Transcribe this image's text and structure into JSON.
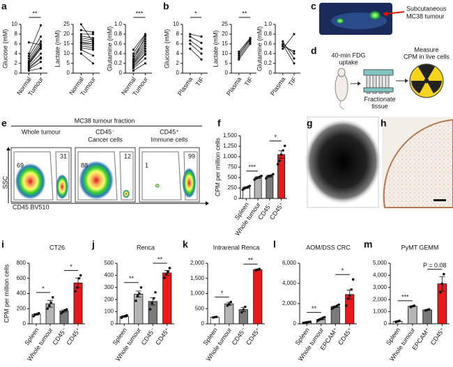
{
  "chart_data": [
    {
      "type": "paired",
      "ylabel": "Glucose (mM)",
      "categories": [
        "Normal",
        "Tumour"
      ],
      "color": "#111111",
      "series": [
        {
          "values": [
            0.5,
            1
          ]
        },
        {
          "values": [
            0.8,
            2.3
          ]
        },
        {
          "values": [
            1,
            3
          ]
        },
        {
          "values": [
            1.2,
            3.2
          ]
        },
        {
          "values": [
            1.5,
            4
          ]
        },
        {
          "values": [
            1.8,
            5
          ]
        },
        {
          "values": [
            2,
            5.3
          ]
        },
        {
          "values": [
            2.2,
            5.5
          ]
        },
        {
          "values": [
            2.5,
            6
          ]
        },
        {
          "values": [
            3,
            6.5
          ]
        },
        {
          "values": [
            3.5,
            7.5
          ]
        },
        {
          "values": [
            4,
            9.8
          ]
        },
        {
          "values": [
            6.3,
            5.8
          ]
        }
      ],
      "ylim": [
        0,
        10
      ],
      "yticks": [
        0,
        2,
        4,
        6,
        8,
        10
      ],
      "significance": [
        "**"
      ]
    },
    {
      "type": "paired",
      "ylabel": "Lactate (mM)",
      "categories": [
        "Normal",
        "Tumour"
      ],
      "color": "#111111",
      "series": [
        {
          "values": [
            10,
            5
          ]
        },
        {
          "values": [
            12,
            9
          ]
        },
        {
          "values": [
            13,
            12
          ]
        },
        {
          "values": [
            14,
            13
          ]
        },
        {
          "values": [
            15,
            14
          ]
        },
        {
          "values": [
            15.5,
            15
          ]
        },
        {
          "values": [
            16,
            15
          ]
        },
        {
          "values": [
            17,
            16
          ]
        },
        {
          "values": [
            18,
            17
          ]
        },
        {
          "values": [
            19,
            18
          ]
        },
        {
          "values": [
            20,
            20
          ]
        },
        {
          "values": [
            22,
            21
          ]
        },
        {
          "values": [
            25,
            16
          ]
        }
      ],
      "ylim": [
        0,
        25
      ],
      "yticks": [
        0,
        5,
        10,
        15,
        20,
        25
      ],
      "significance": []
    },
    {
      "type": "paired",
      "ylabel": "Glutamine (mM)",
      "categories": [
        "Normal",
        "Tumour"
      ],
      "color": "#111111",
      "series": [
        {
          "values": [
            0.05,
            0.2
          ]
        },
        {
          "values": [
            0.1,
            0.3
          ]
        },
        {
          "values": [
            0.12,
            0.38
          ]
        },
        {
          "values": [
            0.15,
            0.4
          ]
        },
        {
          "values": [
            0.18,
            0.45
          ]
        },
        {
          "values": [
            0.2,
            0.5
          ]
        },
        {
          "values": [
            0.22,
            0.55
          ]
        },
        {
          "values": [
            0.25,
            0.6
          ]
        },
        {
          "values": [
            0.3,
            0.65
          ]
        },
        {
          "values": [
            0.35,
            0.7
          ]
        },
        {
          "values": [
            0.4,
            0.78
          ]
        },
        {
          "values": [
            0.48,
            0.8
          ]
        },
        {
          "values": [
            0.28,
            0.75
          ]
        }
      ],
      "ylim": [
        0,
        1
      ],
      "yticks": [
        0,
        0.2,
        0.4,
        0.6,
        0.8,
        {
          "value": 1,
          "label": "1.0"
        }
      ],
      "significance": [
        "***"
      ]
    },
    {
      "type": "paired",
      "ylabel": "Glucose (mM)",
      "categories": [
        "Plasma",
        "TIF"
      ],
      "color": "#111111",
      "series": [
        {
          "values": [
            8,
            7.5
          ]
        },
        {
          "values": [
            7.5,
            6.2
          ]
        },
        {
          "values": [
            6.7,
            5
          ]
        },
        {
          "values": [
            6,
            4
          ]
        },
        {
          "values": [
            5,
            2.8
          ]
        }
      ],
      "ylim": [
        0,
        10
      ],
      "yticks": [
        0,
        2,
        4,
        6,
        8,
        10
      ],
      "significance": [
        "*"
      ]
    },
    {
      "type": "paired",
      "ylabel": "Lactate (mM)",
      "categories": [
        "Plasma",
        "TIF"
      ],
      "color": "#111111",
      "series": [
        {
          "values": [
            7,
            15
          ]
        },
        {
          "values": [
            8,
            16
          ]
        },
        {
          "values": [
            9,
            17
          ]
        },
        {
          "values": [
            10,
            17.5
          ]
        },
        {
          "values": [
            11,
            18
          ]
        }
      ],
      "ylim": [
        0,
        25
      ],
      "yticks": [
        0,
        5,
        10,
        15,
        20,
        25
      ],
      "significance": [
        "**"
      ]
    },
    {
      "type": "paired",
      "ylabel": "Glutamine (mM)",
      "categories": [
        "Plasma",
        "TIF"
      ],
      "color": "#111111",
      "series": [
        {
          "values": [
            0.5,
            0.8
          ]
        },
        {
          "values": [
            0.55,
            0.45
          ]
        },
        {
          "values": [
            0.6,
            0.4
          ]
        },
        {
          "values": [
            0.65,
            0.3
          ]
        },
        {
          "values": [
            0.58,
            0.2
          ]
        }
      ],
      "ylim": [
        0,
        1
      ],
      "yticks": [
        0,
        0.2,
        0.4,
        0.6,
        0.8,
        {
          "value": 1,
          "label": "1.0"
        }
      ],
      "significance": []
    },
    {
      "type": "bar",
      "ylabel": "CPM per million cells",
      "categories": [
        "Spleen",
        "Whole tumour",
        "CD45⁻",
        "CD45⁺"
      ],
      "colors": [
        "#ffffff",
        "#b5b5b5",
        "#7a7a7a",
        "#e8191a"
      ],
      "values": [
        260,
        500,
        535,
        1050
      ],
      "errors": [
        20,
        20,
        25,
        90
      ],
      "points": [
        [
          210,
          240,
          260,
          280,
          300
        ],
        [
          450,
          480,
          500,
          520,
          540
        ],
        [
          480,
          520,
          540,
          550,
          580
        ],
        [
          820,
          900,
          1050,
          1150,
          1260
        ]
      ],
      "ylim": [
        0,
        1500
      ],
      "yticks": [
        0,
        250,
        500,
        750,
        {
          "value": 1000,
          "label": "1,000"
        },
        {
          "value": 1250,
          "label": "1,250"
        },
        {
          "value": 1500,
          "label": "1,500"
        }
      ],
      "significance": [
        "***",
        "*"
      ]
    },
    {
      "type": "bar",
      "title": "CT26",
      "ylabel": "CPM per million cells",
      "categories": [
        "Spleen",
        "Whole tumour",
        "CD45⁻",
        "CD45⁺"
      ],
      "colors": [
        "#ffffff",
        "#b5b5b5",
        "#7a7a7a",
        "#e8191a"
      ],
      "values": [
        125,
        265,
        170,
        540
      ],
      "errors": [
        10,
        45,
        15,
        65
      ],
      "points": [
        [
          100,
          120,
          130,
          140
        ],
        [
          200,
          240,
          280,
          350
        ],
        [
          140,
          160,
          180,
          190
        ],
        [
          430,
          480,
          600,
          640
        ]
      ],
      "ylim": [
        0,
        800
      ],
      "yticks": [
        0,
        200,
        400,
        600,
        800
      ],
      "significance": [
        "*",
        "*"
      ]
    },
    {
      "type": "bar",
      "title": "Renca",
      "categories": [
        "Spleen",
        "Whole tumour",
        "CD45⁻",
        "CD45⁺"
      ],
      "colors": [
        "#ffffff",
        "#b5b5b5",
        "#7a7a7a",
        "#e8191a"
      ],
      "values": [
        60,
        245,
        185,
        420
      ],
      "errors": [
        5,
        25,
        30,
        20
      ],
      "points": [
        [
          50,
          60,
          65,
          70
        ],
        [
          190,
          230,
          250,
          300
        ],
        [
          120,
          170,
          210,
          260
        ],
        [
          380,
          410,
          430,
          460
        ]
      ],
      "ylim": [
        0,
        500
      ],
      "yticks": [
        0,
        100,
        200,
        300,
        400,
        500
      ],
      "significance": [
        "**",
        "**"
      ]
    },
    {
      "type": "bar",
      "title": "Intrarenal Renca",
      "categories": [
        "Spleen",
        "Whole tumour",
        "CD45⁻",
        "CD45⁺"
      ],
      "colors": [
        "#ffffff",
        "#b5b5b5",
        "#7a7a7a",
        "#e8191a"
      ],
      "values": [
        220,
        660,
        470,
        1790
      ],
      "errors": [
        10,
        50,
        70,
        20
      ],
      "points": [
        [
          210,
          220,
          230
        ],
        [
          600,
          650,
          720
        ],
        [
          380,
          470,
          560
        ],
        [
          1760,
          1790,
          1810
        ]
      ],
      "ylim": [
        0,
        2000
      ],
      "yticks": [
        0,
        500,
        {
          "value": 1000,
          "label": "1,000"
        },
        {
          "value": 1500,
          "label": "1,500"
        },
        {
          "value": 2000,
          "label": "2,000"
        }
      ],
      "significance": [
        "*",
        "**"
      ]
    },
    {
      "type": "bar",
      "title": "AOM/DSS CRC",
      "categories": [
        "Spleen",
        "Whole tumour",
        "EPCAM⁺",
        "CD45⁺"
      ],
      "colors": [
        "#ffffff",
        "#b5b5b5",
        "#7a7a7a",
        "#e8191a"
      ],
      "values": [
        150,
        450,
        1700,
        2900
      ],
      "errors": [
        30,
        70,
        70,
        450
      ],
      "points": [
        [
          80,
          120,
          150,
          180,
          200
        ],
        [
          300,
          400,
          500,
          600,
          650
        ],
        [
          1500,
          1600,
          1700,
          1800,
          1900
        ],
        [
          1800,
          2500,
          2800,
          3400,
          4400
        ]
      ],
      "ylim": [
        0,
        6000
      ],
      "yticks": [
        0,
        {
          "value": 2000,
          "label": "2,000"
        },
        {
          "value": 4000,
          "label": "4,000"
        },
        {
          "value": 6000,
          "label": "6,000"
        }
      ],
      "significance": [
        "**",
        "*"
      ]
    },
    {
      "type": "bar",
      "title": "PyMT GEMM",
      "categories": [
        "Spleen",
        "Whole tumour",
        "EPCAM⁺",
        "CD45⁺"
      ],
      "colors": [
        "#ffffff",
        "#b5b5b5",
        "#7a7a7a",
        "#e8191a"
      ],
      "values": [
        200,
        1450,
        1150,
        3300
      ],
      "errors": [
        40,
        40,
        30,
        600
      ],
      "points": [
        [
          150,
          200,
          250
        ],
        [
          1380,
          1450,
          1500
        ],
        [
          1100,
          1150,
          1200
        ],
        [
          2600,
          3300,
          4100
        ]
      ],
      "ylim": [
        0,
        5000
      ],
      "yticks": [
        0,
        {
          "value": 1000,
          "label": "1,000"
        },
        {
          "value": 2000,
          "label": "2,000"
        },
        {
          "value": 3000,
          "label": "3,000"
        },
        {
          "value": 4000,
          "label": "4,000"
        },
        {
          "value": 5000,
          "label": "5,000"
        }
      ],
      "significance": [
        "***",
        "P = 0.08"
      ]
    }
  ],
  "figure": {
    "panel_labels": [
      "a",
      "b",
      "c",
      "d",
      "e",
      "f",
      "g",
      "h",
      "i",
      "j",
      "k",
      "l",
      "m"
    ],
    "imaging": {
      "caption": [
        "Subcutaneous",
        "MC38 tumour"
      ]
    },
    "workflow": {
      "uptake": [
        "40-min FDG",
        "uptake"
      ],
      "fractionate": [
        "Fractionate",
        "tissue"
      ],
      "measure": [
        "Measure",
        "CPM in live cells"
      ]
    },
    "flow": {
      "title": "MC38 tumour fraction",
      "xlabel": "CD45 BV510",
      "ylabel": "SSC",
      "panels": [
        {
          "title": [
            "Whole tumour"
          ],
          "gates": [
            69,
            31
          ]
        },
        {
          "title": [
            "CD45⁻",
            "Cancer cells"
          ],
          "gates": [
            88,
            12
          ]
        },
        {
          "title": [
            "CD45⁺",
            "Immune cells"
          ],
          "gates": [
            1,
            99
          ]
        }
      ]
    }
  }
}
